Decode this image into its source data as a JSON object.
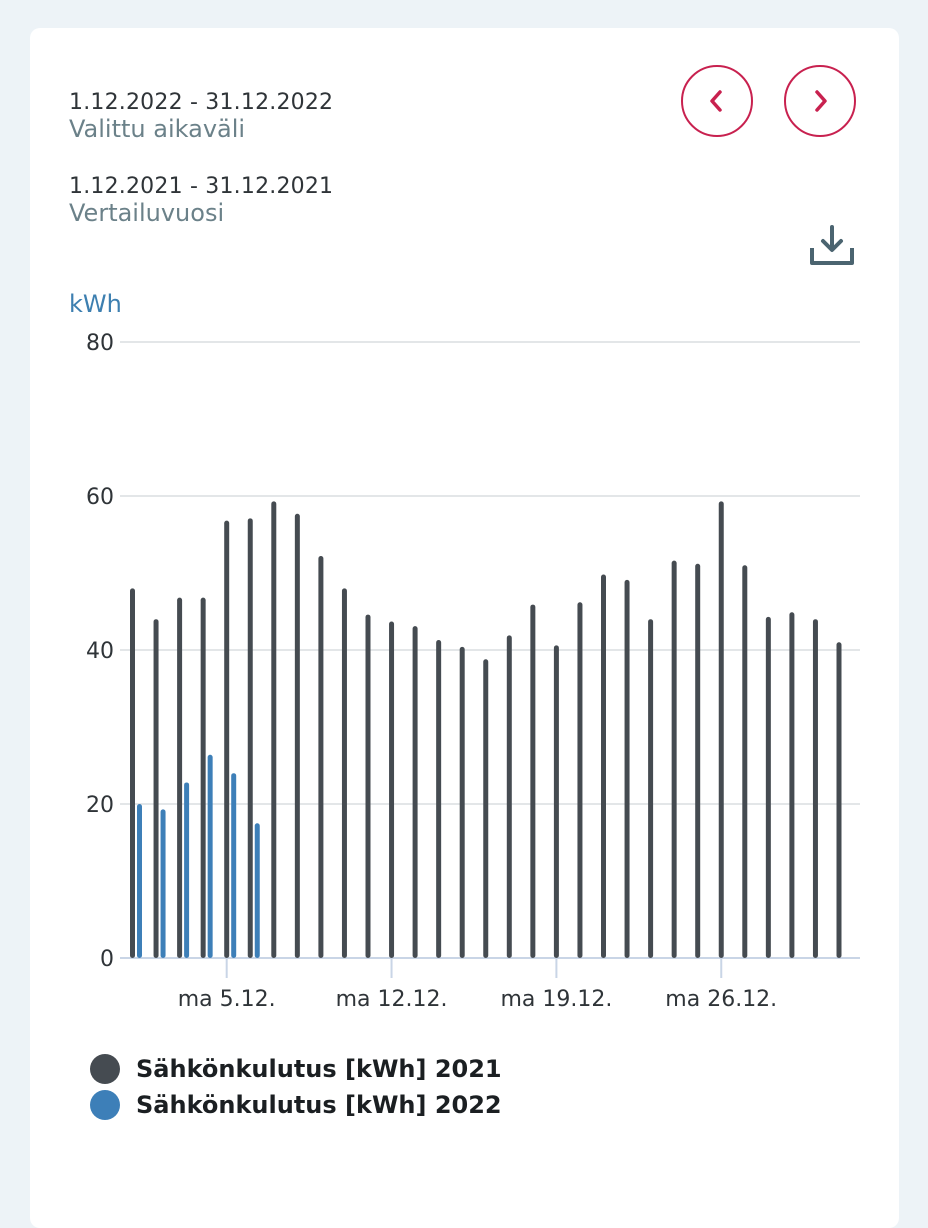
{
  "selected_range": {
    "dates": "1.12.2022 - 31.12.2022",
    "caption": "Valittu aikaväli"
  },
  "compare_range": {
    "dates": "1.12.2021 - 31.12.2021",
    "caption": "Vertailuvuosi"
  },
  "icons": {
    "prev": "chevron-left-icon",
    "next": "chevron-right-icon",
    "download": "download-icon"
  },
  "colors": {
    "accent": "#c8214f",
    "series_2021": "#454b51",
    "series_2022": "#3d7fb8",
    "grid": "#e3e6e8",
    "axis": "#c9d5e6"
  },
  "chart_data": {
    "type": "bar",
    "unit_label": "kWh",
    "x_start_date": "2022-12-01",
    "y_ticks": [
      0,
      20,
      40,
      60,
      80
    ],
    "ylim": [
      0,
      80
    ],
    "x_tick_labels": [
      "ma 5.12.",
      "ma 12.12.",
      "ma 19.12.",
      "ma 26.12."
    ],
    "x_tick_days": [
      5,
      12,
      19,
      26
    ],
    "grid": true,
    "legend_position": "bottom",
    "series": [
      {
        "name": "Sähkönkulutus [kWh] 2021",
        "color": "#454b51",
        "values": [
          48,
          44,
          46.8,
          46.8,
          56.8,
          57.1,
          59.3,
          57.7,
          52.2,
          48,
          44.6,
          43.7,
          43.1,
          41.3,
          40.4,
          38.8,
          41.9,
          45.9,
          40.6,
          46.2,
          49.8,
          49.1,
          44,
          51.6,
          51.2,
          59.3,
          51,
          44.3,
          44.9,
          44,
          41
        ]
      },
      {
        "name": "Sähkönkulutus [kWh] 2022",
        "color": "#3d7fb8",
        "values": [
          20,
          19.3,
          22.8,
          26.4,
          24,
          17.5
        ]
      }
    ]
  }
}
